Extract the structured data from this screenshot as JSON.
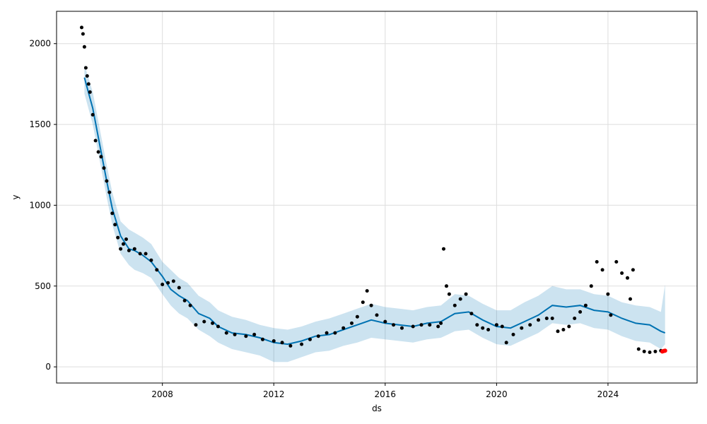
{
  "chart_data": {
    "type": "line",
    "title": "",
    "xlabel": "ds",
    "ylabel": "y",
    "xlim": [
      2004.2,
      2027.2
    ],
    "ylim": [
      -100,
      2200
    ],
    "grid": true,
    "x_ticks": [
      {
        "value": 2008,
        "label": "2008"
      },
      {
        "value": 2012,
        "label": "2012"
      },
      {
        "value": 2016,
        "label": "2016"
      },
      {
        "value": 2020,
        "label": "2020"
      },
      {
        "value": 2024,
        "label": "2024"
      }
    ],
    "y_ticks": [
      {
        "value": 0,
        "label": "0"
      },
      {
        "value": 500,
        "label": "500"
      },
      {
        "value": 1000,
        "label": "1000"
      },
      {
        "value": 1500,
        "label": "1500"
      },
      {
        "value": 2000,
        "label": "2000"
      }
    ],
    "colors": {
      "forecast_line": "#0072B2",
      "interval_band": "#0072B2",
      "observed_points": "#000000",
      "highlight_points": "#ff0000"
    },
    "forecast": {
      "x": [
        2005.2,
        2005.5,
        2005.8,
        2006.0,
        2006.2,
        2006.5,
        2006.8,
        2007.0,
        2007.3,
        2007.6,
        2008.0,
        2008.3,
        2008.6,
        2008.9,
        2009.3,
        2009.7,
        2010.0,
        2010.5,
        2011.0,
        2011.5,
        2012.0,
        2012.5,
        2013.0,
        2013.5,
        2014.0,
        2014.5,
        2015.0,
        2015.5,
        2016.0,
        2016.5,
        2017.0,
        2017.5,
        2018.0,
        2018.5,
        2019.0,
        2019.5,
        2020.0,
        2020.5,
        2021.0,
        2021.5,
        2022.0,
        2022.5,
        2023.0,
        2023.5,
        2024.0,
        2024.5,
        2025.0,
        2025.5,
        2025.9,
        2026.05
      ],
      "y": [
        1790,
        1600,
        1330,
        1150,
        980,
        810,
        730,
        720,
        690,
        650,
        560,
        480,
        440,
        410,
        330,
        300,
        250,
        210,
        200,
        180,
        150,
        140,
        160,
        190,
        200,
        230,
        260,
        290,
        270,
        260,
        250,
        270,
        280,
        330,
        340,
        290,
        250,
        240,
        280,
        320,
        380,
        370,
        380,
        350,
        340,
        300,
        270,
        260,
        220,
        210
      ]
    },
    "upper": [
      1870,
      1700,
      1430,
      1250,
      1080,
      900,
      850,
      830,
      800,
      760,
      650,
      600,
      550,
      520,
      440,
      400,
      350,
      310,
      290,
      260,
      240,
      230,
      250,
      280,
      300,
      330,
      360,
      390,
      370,
      360,
      350,
      370,
      380,
      450,
      440,
      390,
      350,
      350,
      400,
      440,
      500,
      480,
      480,
      450,
      440,
      400,
      380,
      370,
      340,
      510
    ],
    "lower": [
      1690,
      1500,
      1230,
      1050,
      880,
      700,
      630,
      600,
      580,
      550,
      450,
      380,
      330,
      300,
      230,
      190,
      150,
      110,
      90,
      70,
      30,
      30,
      60,
      90,
      100,
      130,
      150,
      180,
      170,
      160,
      150,
      170,
      180,
      220,
      230,
      180,
      140,
      130,
      170,
      210,
      270,
      260,
      270,
      240,
      230,
      190,
      160,
      150,
      110,
      140
    ],
    "observed": {
      "x": [
        2005.1,
        2005.15,
        2005.2,
        2005.25,
        2005.3,
        2005.35,
        2005.4,
        2005.5,
        2005.6,
        2005.7,
        2005.8,
        2005.9,
        2006.0,
        2006.1,
        2006.2,
        2006.3,
        2006.4,
        2006.5,
        2006.6,
        2006.7,
        2006.8,
        2007.0,
        2007.2,
        2007.4,
        2007.6,
        2007.8,
        2008.0,
        2008.2,
        2008.4,
        2008.6,
        2008.8,
        2009.0,
        2009.2,
        2009.5,
        2009.8,
        2010.0,
        2010.3,
        2010.6,
        2011.0,
        2011.3,
        2011.6,
        2012.0,
        2012.3,
        2012.6,
        2013.0,
        2013.3,
        2013.6,
        2013.9,
        2014.2,
        2014.5,
        2014.8,
        2015.0,
        2015.2,
        2015.35,
        2015.5,
        2015.7,
        2016.0,
        2016.3,
        2016.6,
        2017.0,
        2017.3,
        2017.6,
        2017.9,
        2018.0,
        2018.1,
        2018.2,
        2018.3,
        2018.5,
        2018.7,
        2018.9,
        2019.1,
        2019.3,
        2019.5,
        2019.7,
        2020.0,
        2020.2,
        2020.35,
        2020.6,
        2020.9,
        2021.2,
        2021.5,
        2021.8,
        2022.0,
        2022.2,
        2022.4,
        2022.6,
        2022.8,
        2023.0,
        2023.2,
        2023.4,
        2023.6,
        2023.8,
        2024.0,
        2024.1,
        2024.3,
        2024.5,
        2024.7,
        2024.8,
        2024.9,
        2025.1,
        2025.3,
        2025.5,
        2025.7,
        2025.9
      ],
      "y": [
        2100,
        2060,
        1980,
        1850,
        1800,
        1750,
        1700,
        1560,
        1400,
        1330,
        1300,
        1230,
        1150,
        1080,
        950,
        880,
        800,
        730,
        760,
        790,
        720,
        730,
        700,
        700,
        660,
        600,
        510,
        520,
        530,
        490,
        410,
        380,
        260,
        280,
        270,
        250,
        210,
        200,
        190,
        200,
        170,
        160,
        150,
        130,
        140,
        170,
        190,
        210,
        210,
        240,
        270,
        310,
        400,
        470,
        380,
        320,
        280,
        260,
        240,
        250,
        260,
        260,
        250,
        270,
        730,
        500,
        450,
        380,
        420,
        450,
        330,
        260,
        240,
        230,
        260,
        250,
        150,
        200,
        240,
        260,
        290,
        300,
        300,
        220,
        230,
        250,
        300,
        340,
        380,
        500,
        650,
        600,
        450,
        320,
        650,
        580,
        550,
        420,
        600,
        110,
        95,
        90,
        95,
        100
      ]
    },
    "highlight": {
      "x": [
        2025.95,
        2026.0,
        2026.05
      ],
      "y": [
        95,
        98,
        100
      ]
    }
  }
}
